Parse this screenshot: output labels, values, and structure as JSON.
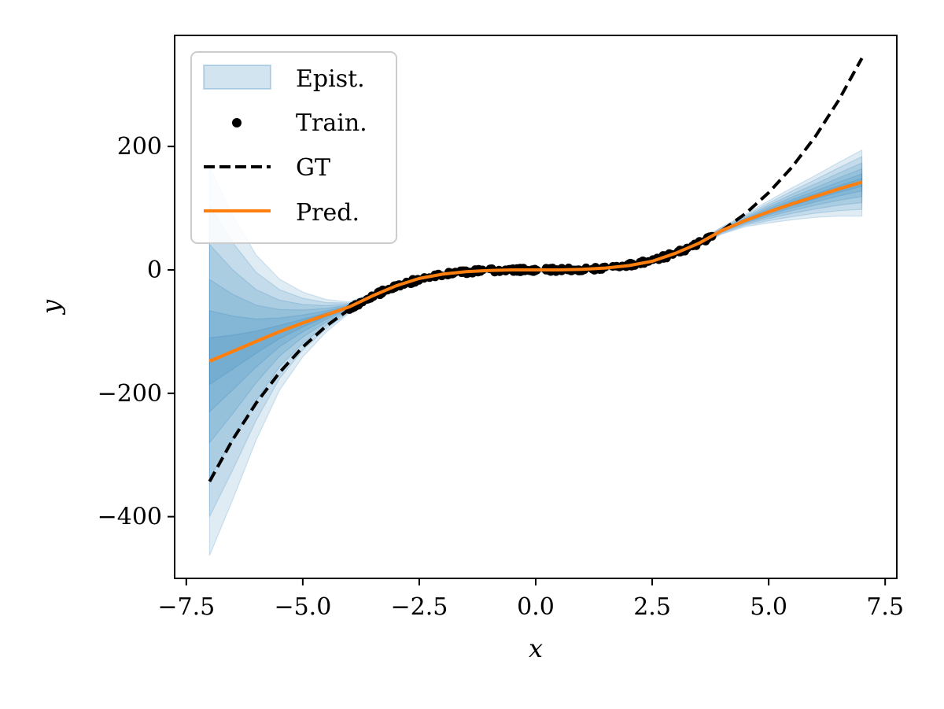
{
  "chart_data": {
    "type": "line",
    "title": "",
    "xlabel": "x",
    "ylabel": "y",
    "xlim": [
      -7.75,
      7.75
    ],
    "ylim": [
      -500,
      380
    ],
    "xticks": [
      -7.5,
      -5.0,
      -2.5,
      0.0,
      2.5,
      5.0,
      7.5
    ],
    "xtick_labels": [
      "−7.5",
      "−5.0",
      "−2.5",
      "0.0",
      "2.5",
      "5.0",
      "7.5"
    ],
    "yticks": [
      -400,
      -200,
      0,
      200
    ],
    "ytick_labels": [
      "−400",
      "−200",
      "0",
      "200"
    ],
    "grid": false,
    "legend_position": "top-left",
    "legend": [
      "Epist.",
      "Train.",
      "GT",
      "Pred."
    ],
    "colors": {
      "epist": "#1f77b4",
      "train": "#000000",
      "gt": "#000000",
      "pred": "#ff7f0e"
    },
    "series": [
      {
        "name": "GT",
        "style": "dashed",
        "x": [
          -7.0,
          -6.5,
          -6.0,
          -5.5,
          -5.0,
          -4.5,
          -4.0,
          -3.5,
          -3.0,
          -2.5,
          -2.0,
          -1.5,
          -1.0,
          -0.5,
          0.0,
          0.5,
          1.0,
          1.5,
          2.0,
          2.5,
          3.0,
          3.5,
          4.0,
          4.5,
          5.0,
          5.5,
          6.0,
          6.5,
          7.0
        ],
        "y": [
          -343,
          -274.6,
          -216,
          -166.4,
          -125,
          -91.1,
          -64,
          -42.9,
          -27,
          -15.6,
          -8,
          -3.4,
          -1,
          -0.1,
          0,
          0.1,
          1,
          3.4,
          8,
          15.6,
          27,
          42.9,
          64,
          91.1,
          125,
          166.4,
          216,
          274.6,
          343
        ]
      },
      {
        "name": "Pred.",
        "style": "solid",
        "x": [
          -7.0,
          -6.5,
          -6.0,
          -5.5,
          -5.0,
          -4.5,
          -4.0,
          -3.5,
          -3.0,
          -2.5,
          -2.0,
          -1.5,
          -1.0,
          -0.5,
          0.0,
          0.5,
          1.0,
          1.5,
          2.0,
          2.5,
          3.0,
          3.5,
          4.0,
          4.5,
          5.0,
          5.5,
          6.0,
          6.5,
          7.0
        ],
        "y": [
          -148,
          -132,
          -116,
          -100,
          -86,
          -73,
          -60,
          -42,
          -26,
          -14,
          -7,
          -3,
          -1,
          0,
          0,
          0,
          1,
          3,
          7,
          14,
          27,
          43,
          64,
          80,
          94,
          107,
          119,
          131,
          142
        ]
      }
    ],
    "epist_bands": {
      "x": [
        -7.0,
        -6.5,
        -6.0,
        -5.5,
        -5.0,
        -4.5,
        -4.0,
        -3.5,
        -3.0,
        -2.5,
        -2.0,
        -1.5,
        -1.0,
        -0.5,
        0.0,
        0.5,
        1.0,
        1.5,
        2.0,
        2.5,
        3.0,
        3.5,
        4.0,
        4.5,
        5.0,
        5.5,
        6.0,
        6.5,
        7.0
      ],
      "center": [
        -148,
        -132,
        -116,
        -100,
        -86,
        -73,
        -60,
        -42,
        -26,
        -14,
        -7,
        -3,
        -1,
        0,
        0,
        0,
        1,
        3,
        7,
        14,
        27,
        43,
        64,
        80,
        94,
        107,
        119,
        131,
        142
      ],
      "upper_offsets": [
        315,
        220,
        140,
        85,
        50,
        25,
        8,
        5,
        4,
        4,
        4,
        4,
        4,
        4,
        4,
        4,
        4,
        4,
        4,
        4,
        4,
        4,
        6,
        10,
        18,
        26,
        34,
        43,
        52
      ],
      "lower_offsets": [
        315,
        240,
        160,
        95,
        55,
        28,
        10,
        5,
        4,
        4,
        4,
        4,
        4,
        4,
        4,
        4,
        4,
        4,
        4,
        4,
        4,
        4,
        6,
        10,
        18,
        26,
        34,
        44,
        55
      ],
      "levels": [
        1.0,
        0.8,
        0.6,
        0.42,
        0.26,
        0.12
      ]
    },
    "train_points": {
      "x_range": [
        -4.0,
        4.0
      ],
      "count": 220,
      "noise": 3,
      "follows": "GT"
    }
  }
}
